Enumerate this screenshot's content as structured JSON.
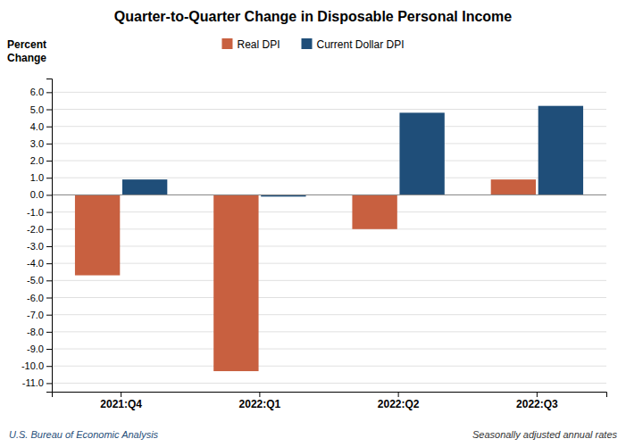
{
  "chart_data": {
    "type": "bar",
    "title": "Quarter-to-Quarter Change in Disposable Personal Income",
    "ylabel": "Percent\nChange",
    "categories": [
      "2021:Q4",
      "2022:Q1",
      "2022:Q2",
      "2022:Q3"
    ],
    "series": [
      {
        "name": "Real DPI",
        "color": "#C86040",
        "values": [
          -4.7,
          -10.3,
          -2.0,
          0.9
        ]
      },
      {
        "name": "Current Dollar DPI",
        "color": "#1F4E79",
        "values": [
          0.9,
          -0.1,
          4.8,
          5.2
        ]
      }
    ],
    "ylim": [
      -11.5,
      6.8
    ],
    "yticks": [
      {
        "value": 6.0,
        "label": "6.0"
      },
      {
        "value": 5.0,
        "label": "5.0"
      },
      {
        "value": 4.0,
        "label": "4.0"
      },
      {
        "value": 3.0,
        "label": "3.0"
      },
      {
        "value": 2.0,
        "label": "2.0"
      },
      {
        "value": 1.0,
        "label": "1.0"
      },
      {
        "value": 0.0,
        "label": "0.0"
      },
      {
        "value": -1.0,
        "label": "-1.0"
      },
      {
        "value": -2.0,
        "label": "-2.0"
      },
      {
        "value": -3.0,
        "label": "-3.0"
      },
      {
        "value": -4.0,
        "label": "-4.0"
      },
      {
        "value": -5.0,
        "label": "-5.0"
      },
      {
        "value": -6.0,
        "label": "-6.0"
      },
      {
        "value": -7.0,
        "label": "-7.0"
      },
      {
        "value": -8.0,
        "label": "-8.0"
      },
      {
        "value": -9.0,
        "label": "-9.0"
      },
      {
        "value": -10.0,
        "label": "-10.0"
      },
      {
        "value": -11.0,
        "label": "-11.0"
      }
    ],
    "grid": true,
    "legend": "top",
    "annotations": [
      {
        "text": "U.S. Bureau of Economic Analysis",
        "color": "#1F4E79"
      },
      {
        "text": "Seasonally adjusted annual rates"
      }
    ]
  }
}
